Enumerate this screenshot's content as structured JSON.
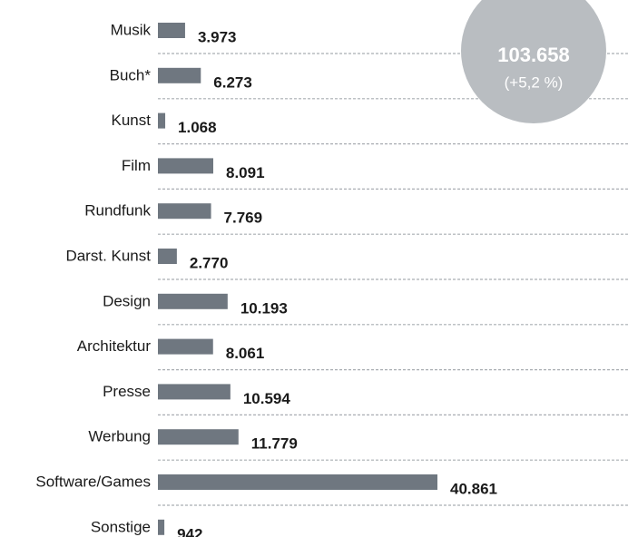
{
  "chart_data": {
    "type": "bar",
    "orientation": "horizontal",
    "categories": [
      "Musik",
      "Buch*",
      "Kunst",
      "Film",
      "Rundfunk",
      "Darst. Kunst",
      "Design",
      "Architektur",
      "Presse",
      "Werbung",
      "Software/Games",
      "Sonstige"
    ],
    "values": [
      3973,
      6273,
      1068,
      8091,
      7769,
      2770,
      10193,
      8061,
      10594,
      11779,
      40861,
      942
    ],
    "value_labels": [
      "3.973",
      "6.273",
      "1.068",
      "8.091",
      "7.769",
      "2.770",
      "10.193",
      "8.061",
      "10.594",
      "11.779",
      "40.861",
      "942"
    ],
    "color": "#6f7780",
    "annotations": [
      "103.658",
      "(+5,2 %)"
    ]
  }
}
